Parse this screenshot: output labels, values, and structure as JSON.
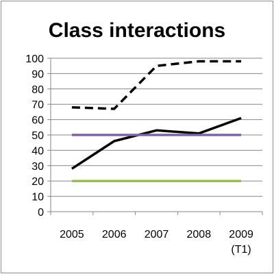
{
  "chart_data": {
    "type": "line",
    "title": "Class interactions",
    "xlabel": "",
    "ylabel": "",
    "categories": [
      [
        "2005"
      ],
      [
        "2006"
      ],
      [
        "2007"
      ],
      [
        "2008"
      ],
      [
        "2009",
        "(T1)"
      ]
    ],
    "ylim": [
      0,
      100
    ],
    "yticks": [
      0,
      10,
      20,
      30,
      40,
      50,
      60,
      70,
      80,
      90,
      100
    ],
    "grid": true,
    "legend": "none",
    "series": [
      {
        "values": [
          68,
          67,
          95,
          98,
          98
        ],
        "color": "#000000",
        "style": "dashed"
      },
      {
        "values": [
          28,
          46,
          53,
          51,
          61
        ],
        "color": "#000000",
        "style": "solid"
      },
      {
        "values": [
          50,
          50,
          50,
          50,
          50
        ],
        "color": "#8064a2",
        "style": "solid"
      },
      {
        "values": [
          20,
          20,
          20,
          20,
          20
        ],
        "color": "#9bbb59",
        "style": "solid"
      }
    ],
    "colors": {
      "grid": "#868686",
      "axis": "#868686"
    }
  }
}
